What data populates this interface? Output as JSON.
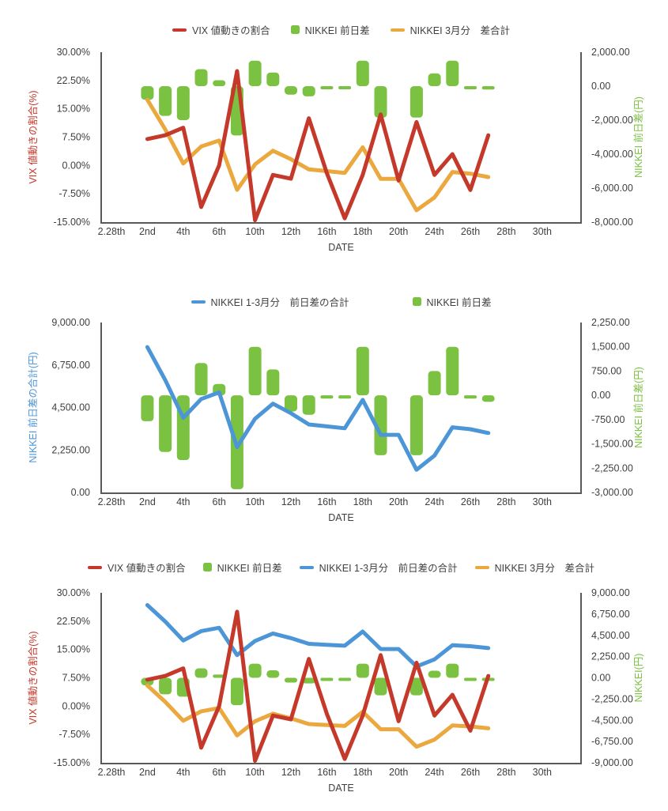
{
  "page_background": "#ffffff",
  "colors": {
    "vix_red": "#C5392B",
    "nikkei_bar_green": "#7BC142",
    "cum_total_blue": "#4C96D8",
    "march_cum_orange": "#EAA83E",
    "axis_line": "#58595B",
    "tick_text": "#3F3F3F"
  },
  "chart_data": {
    "type": "combo",
    "x": {
      "title": "DATE",
      "tick_labels": [
        "2.28th",
        "2nd",
        "4th",
        "6th",
        "10th",
        "12th",
        "16th",
        "18th",
        "20th",
        "24th",
        "26th",
        "28th",
        "30th"
      ],
      "n_slots": 25,
      "tick_every": 2,
      "data_first_slot": 2
    },
    "series_values": {
      "nikkei_daily_diff": [
        -800,
        -1750,
        -2000,
        1000,
        350,
        -2900,
        1500,
        800,
        -500,
        -600,
        -100,
        -100,
        1500,
        -1850,
        0,
        -1850,
        750,
        1500,
        -100,
        -200
      ],
      "vix_change_pct": [
        7,
        8,
        10,
        -11,
        0,
        25,
        -14.5,
        -2.5,
        -3.5,
        12.5,
        -2,
        -14,
        -2.5,
        13.5,
        -4,
        11.5,
        -2.5,
        3,
        -6.5,
        8
      ],
      "nikkei_march_cum": [
        -800,
        -2550,
        -4550,
        -3550,
        -3200,
        -6100,
        -4600,
        -3800,
        -4300,
        -4900,
        -5000,
        -5100,
        -3600,
        -5450,
        -5450,
        -7300,
        -6550,
        -5050,
        -5150,
        -5350
      ],
      "nikkei_jan_mar_cum": [
        7700,
        5950,
        3950,
        4950,
        5300,
        2400,
        3900,
        4700,
        4200,
        3600,
        3500,
        3400,
        4900,
        3050,
        3050,
        1200,
        1950,
        3450,
        3350,
        3150
      ]
    },
    "charts": [
      {
        "name": "vix-vs-nikkei-daily",
        "legend": [
          {
            "label": "VIX 値動きの割合",
            "marker": "line",
            "color_key": "vix_red"
          },
          {
            "label": "NIKKEI 前日差",
            "marker": "square",
            "color_key": "nikkei_bar_green"
          },
          {
            "label": "NIKKEI 3月分　差合計",
            "marker": "line",
            "color_key": "march_cum_orange"
          }
        ],
        "left_axis": {
          "title": "VIX 値動きの割合(%)",
          "color_key": "vix_red",
          "max": 30,
          "min": -15,
          "ticks": [
            "30.00%",
            "22.50%",
            "15.00%",
            "7.50%",
            "0.00%",
            "-7.50%",
            "-15.00%"
          ]
        },
        "right_axis": {
          "title": "NIKKEI 前日差(円)",
          "color_key": "nikkei_bar_green",
          "max": 2000,
          "min": -8000,
          "ticks": [
            "2,000.00",
            "0.00",
            "-2,000.00",
            "-4,000.00",
            "-6,000.00",
            "-8,000.00"
          ]
        },
        "x_title": "DATE",
        "series": [
          {
            "name": "nikkei-daily-diff-bars",
            "type": "bar",
            "axis": "right",
            "color_key": "nikkei_bar_green",
            "values_from": "nikkei_daily_diff"
          },
          {
            "name": "nikkei-march-cum-line",
            "type": "line",
            "axis": "right",
            "color_key": "march_cum_orange",
            "values_from": "nikkei_march_cum"
          },
          {
            "name": "vix-change-line",
            "type": "line",
            "axis": "left",
            "color_key": "vix_red",
            "values_from": "vix_change_pct"
          }
        ]
      },
      {
        "name": "nikkei-cum-vs-daily",
        "legend": [
          {
            "label": "NIKKEI 1-3月分　前日差の合計",
            "marker": "line",
            "color_key": "cum_total_blue"
          },
          {
            "label": "NIKKEI 前日差",
            "marker": "square",
            "color_key": "nikkei_bar_green"
          }
        ],
        "left_axis": {
          "title": "NIKKEI 前日差の合計(円)",
          "color_key": "cum_total_blue",
          "max": 9000,
          "min": 0,
          "ticks": [
            "9,000.00",
            "6,750.00",
            "4,500.00",
            "2,250.00",
            "0.00"
          ]
        },
        "right_axis": {
          "title": "NIKKEI 前日差(円)",
          "color_key": "nikkei_bar_green",
          "max": 2250,
          "min": -3000,
          "ticks": [
            "2,250.00",
            "1,500.00",
            "750.00",
            "0.00",
            "-750.00",
            "-1,500.00",
            "-2,250.00",
            "-3,000.00"
          ]
        },
        "x_title": "DATE",
        "series": [
          {
            "name": "nikkei-daily-diff-bars",
            "type": "bar",
            "axis": "right",
            "color_key": "nikkei_bar_green",
            "values_from": "nikkei_daily_diff"
          },
          {
            "name": "nikkei-jan-mar-cum-line",
            "type": "line",
            "axis": "left",
            "color_key": "cum_total_blue",
            "values_from": "nikkei_jan_mar_cum"
          }
        ]
      },
      {
        "name": "all-series-combined",
        "legend": [
          {
            "label": "VIX 値動きの割合",
            "marker": "line",
            "color_key": "vix_red"
          },
          {
            "label": "NIKKEI 前日差",
            "marker": "square",
            "color_key": "nikkei_bar_green"
          },
          {
            "label": "NIKKEI 1-3月分　前日差の合計",
            "marker": "line",
            "color_key": "cum_total_blue"
          },
          {
            "label": "NIKKEI 3月分　差合計",
            "marker": "line",
            "color_key": "march_cum_orange"
          }
        ],
        "left_axis": {
          "title": "VIX 値動きの割合(%)",
          "color_key": "vix_red",
          "max": 30,
          "min": -15,
          "ticks": [
            "30.00%",
            "22.50%",
            "15.00%",
            "7.50%",
            "0.00%",
            "-7.50%",
            "-15.00%"
          ]
        },
        "right_axis": {
          "title": "NIKKEI(円)",
          "color_key": "nikkei_bar_green",
          "max": 9000,
          "min": -9000,
          "ticks": [
            "9,000.00",
            "6,750.00",
            "4,500.00",
            "2,250.00",
            "0.00",
            "-2,250.00",
            "-4,500.00",
            "-6,750.00",
            "-9,000.00"
          ]
        },
        "x_title": "DATE",
        "series": [
          {
            "name": "nikkei-daily-diff-bars",
            "type": "bar",
            "axis": "right",
            "color_key": "nikkei_bar_green",
            "values_from": "nikkei_daily_diff"
          },
          {
            "name": "nikkei-jan-mar-cum-line",
            "type": "line",
            "axis": "right",
            "color_key": "cum_total_blue",
            "values_from": "nikkei_jan_mar_cum"
          },
          {
            "name": "nikkei-march-cum-line",
            "type": "line",
            "axis": "right",
            "color_key": "march_cum_orange",
            "values_from": "nikkei_march_cum"
          },
          {
            "name": "vix-change-line",
            "type": "line",
            "axis": "left",
            "color_key": "vix_red",
            "values_from": "vix_change_pct"
          }
        ]
      }
    ]
  }
}
